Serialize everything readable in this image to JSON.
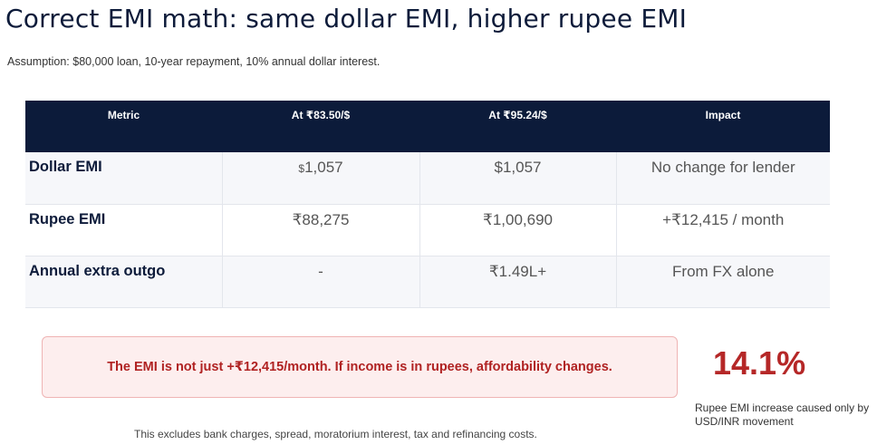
{
  "title": "Correct EMI math: same dollar EMI, higher rupee EMI",
  "assumption": "Assumption: $80,000 loan, 10-year repayment, 10% annual dollar interest.",
  "table": {
    "headers": [
      "Metric",
      "At ₹83.50/$",
      "At ₹95.24/$",
      "Impact"
    ],
    "rows": [
      {
        "metric": "Dollar EMI",
        "at_8350_prefix": "$",
        "at_8350": "1,057",
        "at_9524": "$1,057",
        "impact": "No change for lender"
      },
      {
        "metric": "Rupee EMI",
        "at_8350": "₹88,275",
        "at_9524": "₹1,00,690",
        "impact": "+₹12,415 / month"
      },
      {
        "metric": "Annual extra outgo",
        "at_8350": "-",
        "at_9524": "₹1.49L+",
        "impact": "From FX alone"
      }
    ]
  },
  "alert": {
    "text": "The EMI is not just +₹12,415/month. If income is in rupees, affordability changes."
  },
  "stat": {
    "value": "14.1%",
    "caption": "Rupee EMI increase caused only by USD/INR movement"
  },
  "footnote": "This excludes bank charges, spread, moratorium interest, tax and refinancing costs.",
  "colors": {
    "header_bg": "#0c1b3a",
    "accent_red": "#b52727",
    "alert_bg": "#fdeeee"
  }
}
